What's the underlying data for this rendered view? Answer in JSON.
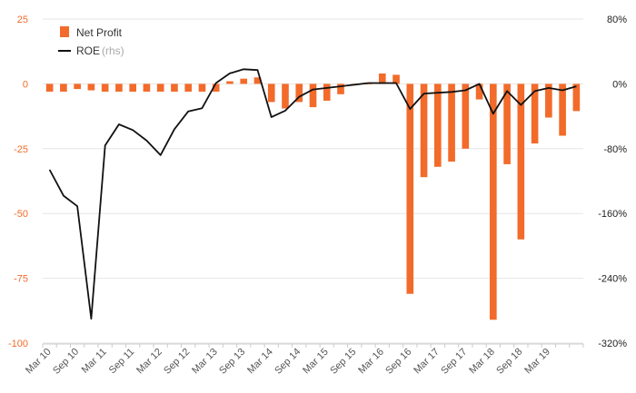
{
  "chart_data": {
    "type": "bar+line",
    "y_left": {
      "ylim": [
        -100,
        25
      ],
      "ticks": [
        "25",
        "0",
        "-25",
        "-50",
        "-75",
        "-100"
      ],
      "tick_values": [
        25,
        0,
        -25,
        -50,
        -75,
        -100
      ],
      "color": "#f26b2a"
    },
    "y_right": {
      "ylim": [
        -320,
        80
      ],
      "ticks": [
        "80%",
        "0%",
        "-80%",
        "-160%",
        "-240%",
        "-320%"
      ],
      "tick_values": [
        80,
        0,
        -80,
        -160,
        -240,
        -320
      ],
      "unit": "%"
    },
    "x_labels": [
      "Mar 10",
      "Sep 10",
      "Mar 11",
      "Sep 11",
      "Mar 12",
      "Sep 12",
      "Mar 13",
      "Sep 13",
      "Mar 14",
      "Sep 14",
      "Mar 15",
      "Sep 15",
      "Mar 16",
      "Sep 16",
      "Mar 17",
      "Sep 17",
      "Mar 18",
      "Sep 18",
      "Mar 19"
    ],
    "legend": {
      "net_profit": "Net Profit",
      "roe": "ROE",
      "roe_suffix": "(rhs)",
      "position": "top-left"
    },
    "series": [
      {
        "name": "Net Profit",
        "type": "bar",
        "axis": "left",
        "color": "#f26b2a",
        "values": [
          -3,
          -3,
          -2,
          -2.5,
          -3,
          -3,
          -3,
          -3,
          -3,
          -3,
          -3,
          -3,
          -3,
          1,
          2,
          2.5,
          -7,
          -9.5,
          -7,
          -9,
          -6.5,
          -4,
          0,
          0,
          4,
          3.5,
          -81,
          -36,
          -32,
          -30,
          -25,
          -6,
          -91,
          -31,
          -60,
          -23,
          -13,
          -20,
          -10.5
        ]
      },
      {
        "name": "ROE",
        "type": "line",
        "axis": "right",
        "color": "#111111",
        "values": [
          -106,
          -138,
          -151,
          -290,
          -76,
          -50,
          -57,
          -70,
          -88,
          -56,
          -34,
          -30,
          1,
          13,
          18,
          17,
          -41,
          -33,
          -16,
          -7,
          -5,
          -3,
          -1,
          1,
          1,
          1,
          -31,
          -12,
          -11,
          -10,
          -8,
          0,
          -37,
          -9,
          -26,
          -9,
          -5,
          -8,
          -3
        ]
      }
    ],
    "grid": true
  }
}
